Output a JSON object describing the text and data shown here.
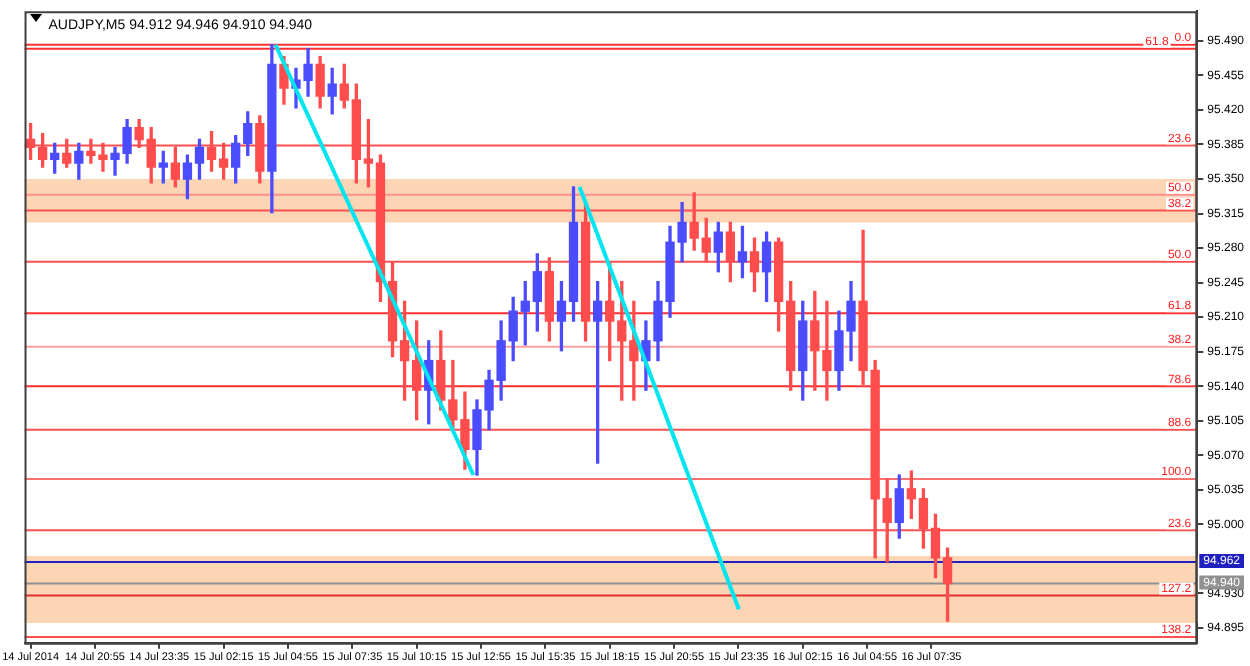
{
  "chart_data": {
    "type": "candlestick",
    "title": "AUDJPY,M5 94.912 94.946 94.910 94.940",
    "x": [
      "2014-07-14T18:15",
      "2014-07-14T18:45",
      "2014-07-14T19:15",
      "2014-07-14T19:45",
      "2014-07-14T20:15",
      "2014-07-14T20:45",
      "2014-07-14T21:15",
      "2014-07-14T21:45",
      "2014-07-14T22:15",
      "2014-07-14T22:45",
      "2014-07-14T23:15",
      "2014-07-14T23:45",
      "2014-07-15T00:15",
      "2014-07-15T00:45",
      "2014-07-15T01:15",
      "2014-07-15T01:45",
      "2014-07-15T02:15",
      "2014-07-15T02:45",
      "2014-07-15T03:15",
      "2014-07-15T03:45",
      "2014-07-15T04:15",
      "2014-07-15T04:45",
      "2014-07-15T05:15",
      "2014-07-15T05:45",
      "2014-07-15T06:15",
      "2014-07-15T06:45",
      "2014-07-15T07:15",
      "2014-07-15T07:45",
      "2014-07-15T08:15",
      "2014-07-15T08:45",
      "2014-07-15T09:15",
      "2014-07-15T09:45",
      "2014-07-15T10:15",
      "2014-07-15T10:45",
      "2014-07-15T11:15",
      "2014-07-15T11:45",
      "2014-07-15T12:15",
      "2014-07-15T12:45",
      "2014-07-15T13:15",
      "2014-07-15T13:45",
      "2014-07-15T14:15",
      "2014-07-15T14:45",
      "2014-07-15T15:15",
      "2014-07-15T15:45",
      "2014-07-15T16:15",
      "2014-07-15T16:45",
      "2014-07-15T17:15",
      "2014-07-15T17:45",
      "2014-07-15T18:15",
      "2014-07-15T18:45",
      "2014-07-15T19:15",
      "2014-07-15T19:45",
      "2014-07-15T20:15",
      "2014-07-15T20:45",
      "2014-07-15T21:15",
      "2014-07-15T21:45",
      "2014-07-15T22:15",
      "2014-07-15T22:45",
      "2014-07-15T23:15",
      "2014-07-15T23:45",
      "2014-07-16T00:15",
      "2014-07-16T00:45",
      "2014-07-16T01:15",
      "2014-07-16T01:45",
      "2014-07-16T02:15",
      "2014-07-16T02:45",
      "2014-07-16T03:15",
      "2014-07-16T03:45",
      "2014-07-16T04:15",
      "2014-07-16T04:45",
      "2014-07-16T05:15",
      "2014-07-16T05:45",
      "2014-07-16T06:15",
      "2014-07-16T06:45",
      "2014-07-16T07:15",
      "2014-07-16T07:45",
      "2014-07-16T08:15"
    ],
    "ohlc": [
      [
        95.39,
        95.406,
        95.37,
        95.382
      ],
      [
        95.382,
        95.396,
        95.362,
        95.37
      ],
      [
        95.37,
        95.386,
        95.356,
        95.376
      ],
      [
        95.376,
        95.39,
        95.362,
        95.366
      ],
      [
        95.366,
        95.386,
        95.35,
        95.378
      ],
      [
        95.378,
        95.39,
        95.366,
        95.374
      ],
      [
        95.374,
        95.386,
        95.358,
        95.37
      ],
      [
        95.37,
        95.382,
        95.354,
        95.376
      ],
      [
        95.376,
        95.41,
        95.366,
        95.402
      ],
      [
        95.402,
        95.41,
        95.382,
        95.39
      ],
      [
        95.39,
        95.402,
        95.346,
        95.362
      ],
      [
        95.362,
        95.378,
        95.346,
        95.366
      ],
      [
        95.366,
        95.382,
        95.342,
        95.35
      ],
      [
        95.35,
        95.374,
        95.33,
        95.366
      ],
      [
        95.366,
        95.39,
        95.35,
        95.382
      ],
      [
        95.382,
        95.398,
        95.358,
        95.37
      ],
      [
        95.37,
        95.386,
        95.35,
        95.362
      ],
      [
        95.362,
        95.394,
        95.346,
        95.386
      ],
      [
        95.386,
        95.418,
        95.374,
        95.406
      ],
      [
        95.406,
        95.414,
        95.346,
        95.358
      ],
      [
        95.358,
        95.486,
        95.316,
        95.466
      ],
      [
        95.466,
        95.474,
        95.426,
        95.442
      ],
      [
        95.442,
        95.462,
        95.422,
        95.45
      ],
      [
        95.45,
        95.482,
        95.434,
        95.466
      ],
      [
        95.466,
        95.474,
        95.422,
        95.434
      ],
      [
        95.434,
        95.462,
        95.416,
        95.446
      ],
      [
        95.446,
        95.466,
        95.422,
        95.43
      ],
      [
        95.43,
        95.446,
        95.346,
        95.37
      ],
      [
        95.37,
        95.41,
        95.342,
        95.366
      ],
      [
        95.366,
        95.374,
        95.226,
        95.246
      ],
      [
        95.246,
        95.266,
        95.17,
        95.186
      ],
      [
        95.186,
        95.226,
        95.126,
        95.166
      ],
      [
        95.166,
        95.206,
        95.106,
        95.136
      ],
      [
        95.136,
        95.186,
        95.102,
        95.166
      ],
      [
        95.166,
        95.196,
        95.116,
        95.126
      ],
      [
        95.126,
        95.166,
        95.096,
        95.106
      ],
      [
        95.106,
        95.134,
        95.056,
        95.076
      ],
      [
        95.076,
        95.126,
        95.05,
        95.116
      ],
      [
        95.116,
        95.156,
        95.096,
        95.146
      ],
      [
        95.146,
        95.206,
        95.126,
        95.186
      ],
      [
        95.186,
        95.23,
        95.166,
        95.216
      ],
      [
        95.216,
        95.246,
        95.182,
        95.226
      ],
      [
        95.226,
        95.274,
        95.196,
        95.256
      ],
      [
        95.256,
        95.27,
        95.186,
        95.206
      ],
      [
        95.206,
        95.246,
        95.176,
        95.226
      ],
      [
        95.226,
        95.342,
        95.206,
        95.306
      ],
      [
        95.306,
        95.326,
        95.186,
        95.206
      ],
      [
        95.206,
        95.246,
        95.062,
        95.226
      ],
      [
        95.226,
        95.266,
        95.166,
        95.206
      ],
      [
        95.206,
        95.246,
        95.126,
        95.186
      ],
      [
        95.186,
        95.226,
        95.126,
        95.166
      ],
      [
        95.166,
        95.206,
        95.136,
        95.186
      ],
      [
        95.186,
        95.246,
        95.166,
        95.226
      ],
      [
        95.226,
        95.302,
        95.21,
        95.286
      ],
      [
        95.286,
        95.326,
        95.266,
        95.306
      ],
      [
        95.306,
        95.336,
        95.278,
        95.29
      ],
      [
        95.29,
        95.31,
        95.266,
        95.276
      ],
      [
        95.276,
        95.306,
        95.256,
        95.296
      ],
      [
        95.296,
        95.306,
        95.246,
        95.266
      ],
      [
        95.266,
        95.302,
        95.25,
        95.276
      ],
      [
        95.276,
        95.29,
        95.236,
        95.256
      ],
      [
        95.256,
        95.296,
        95.226,
        95.286
      ],
      [
        95.286,
        95.29,
        95.196,
        95.226
      ],
      [
        95.226,
        95.246,
        95.136,
        95.156
      ],
      [
        95.156,
        95.226,
        95.126,
        95.206
      ],
      [
        95.206,
        95.236,
        95.136,
        95.176
      ],
      [
        95.176,
        95.226,
        95.126,
        95.156
      ],
      [
        95.156,
        95.216,
        95.136,
        95.196
      ],
      [
        95.196,
        95.246,
        95.166,
        95.226
      ],
      [
        95.226,
        95.298,
        95.142,
        95.156
      ],
      [
        95.156,
        95.166,
        94.966,
        95.026
      ],
      [
        95.026,
        95.046,
        94.962,
        95.002
      ],
      [
        95.002,
        95.05,
        94.986,
        95.036
      ],
      [
        95.036,
        95.054,
        95.006,
        95.026
      ],
      [
        95.026,
        95.036,
        94.976,
        94.996
      ],
      [
        94.996,
        95.01,
        94.946,
        94.966
      ],
      [
        94.966,
        94.976,
        94.902,
        94.94
      ]
    ],
    "colors": [
      "#ff4c4c",
      "#ff4c4c",
      "#4c4cff",
      "#ff4c4c",
      "#4c4cff",
      "#ff4c4c",
      "#ff4c4c",
      "#4c4cff",
      "#4c4cff",
      "#ff4c4c",
      "#ff4c4c",
      "#4c4cff",
      "#ff4c4c",
      "#4c4cff",
      "#4c4cff",
      "#ff4c4c",
      "#ff4c4c",
      "#4c4cff",
      "#4c4cff",
      "#ff4c4c",
      "#4c4cff",
      "#ff4c4c",
      "#4c4cff",
      "#4c4cff",
      "#ff4c4c",
      "#4c4cff",
      "#ff4c4c",
      "#ff4c4c",
      "#ff4c4c",
      "#ff4c4c",
      "#ff4c4c",
      "#ff4c4c",
      "#ff4c4c",
      "#4c4cff",
      "#ff4c4c",
      "#ff4c4c",
      "#ff4c4c",
      "#4c4cff",
      "#4c4cff",
      "#4c4cff",
      "#4c4cff",
      "#4c4cff",
      "#4c4cff",
      "#ff4c4c",
      "#4c4cff",
      "#4c4cff",
      "#ff4c4c",
      "#4c4cff",
      "#ff4c4c",
      "#ff4c4c",
      "#ff4c4c",
      "#4c4cff",
      "#4c4cff",
      "#4c4cff",
      "#4c4cff",
      "#ff4c4c",
      "#ff4c4c",
      "#4c4cff",
      "#ff4c4c",
      "#4c4cff",
      "#ff4c4c",
      "#4c4cff",
      "#ff4c4c",
      "#ff4c4c",
      "#4c4cff",
      "#ff4c4c",
      "#ff4c4c",
      "#4c4cff",
      "#4c4cff",
      "#ff4c4c",
      "#ff4c4c",
      "#ff4c4c",
      "#4c4cff",
      "#ff4c4c",
      "#ff4c4c",
      "#ff4c4c",
      "#ff4c4c"
    ],
    "series": [
      {
        "type": "line",
        "x": [
          "2014-07-15T04:24",
          "2014-07-15T12:36"
        ],
        "values": [
          95.486,
          95.05
        ],
        "color": "#00e5ee"
      },
      {
        "type": "line",
        "x": [
          "2014-07-15T17:00",
          "2014-07-15T23:36"
        ],
        "values": [
          95.342,
          94.914
        ],
        "color": "#00e5ee"
      }
    ],
    "xlim": [
      "2014-07-14T18:00",
      "2014-07-16T18:36"
    ],
    "xticks": [
      {
        "value": "2014-07-14T18:15",
        "label": "14 Jul 2014"
      },
      {
        "value": "2014-07-14T20:55",
        "label": "14 Jul 20:55"
      },
      {
        "value": "2014-07-14T23:35",
        "label": "14 Jul 23:35"
      },
      {
        "value": "2014-07-15T02:15",
        "label": "15 Jul 02:15"
      },
      {
        "value": "2014-07-15T04:55",
        "label": "15 Jul 04:55"
      },
      {
        "value": "2014-07-15T07:35",
        "label": "15 Jul 07:35"
      },
      {
        "value": "2014-07-15T10:15",
        "label": "15 Jul 10:15"
      },
      {
        "value": "2014-07-15T12:55",
        "label": "15 Jul 12:55"
      },
      {
        "value": "2014-07-15T15:35",
        "label": "15 Jul 15:35"
      },
      {
        "value": "2014-07-15T18:15",
        "label": "15 Jul 18:15"
      },
      {
        "value": "2014-07-15T20:55",
        "label": "15 Jul 20:55"
      },
      {
        "value": "2014-07-15T23:35",
        "label": "15 Jul 23:35"
      },
      {
        "value": "2014-07-16T02:15",
        "label": "16 Jul 02:15"
      },
      {
        "value": "2014-07-16T04:55",
        "label": "16 Jul 04:55"
      },
      {
        "value": "2014-07-16T07:35",
        "label": "16 Jul 07:35"
      }
    ],
    "ylim": [
      94.88,
      95.52
    ],
    "yticks": [
      {
        "value": 95.49,
        "label": "95.490"
      },
      95.455,
      {
        "value": 95.42,
        "label": "95.420"
      },
      95.385,
      {
        "value": 95.35,
        "label": "95.350"
      },
      95.315,
      {
        "value": 95.28,
        "label": "95.280"
      },
      95.245,
      {
        "value": 95.21,
        "label": "95.210"
      },
      95.175,
      {
        "value": 95.14,
        "label": "95.140"
      },
      95.105,
      {
        "value": 95.07,
        "label": "95.070"
      },
      95.035,
      {
        "value": 95.0,
        "label": "95.000"
      },
      {
        "value": 94.93,
        "label": "94.930"
      },
      94.895
    ],
    "ref_lines": [
      {
        "axis": "y",
        "value": 95.486,
        "color": "#ff3030"
      },
      {
        "axis": "y",
        "value": 95.482,
        "color": "#ff3030"
      },
      {
        "axis": "y",
        "value": 95.384,
        "color": "#ff5050"
      },
      {
        "axis": "y",
        "value": 95.334,
        "color": "#ff9090"
      },
      {
        "axis": "y",
        "value": 95.318,
        "color": "#ff5050"
      },
      {
        "axis": "y",
        "value": 95.266,
        "color": "#ff5050"
      },
      {
        "axis": "y",
        "value": 95.214,
        "color": "#ff3030"
      },
      {
        "axis": "y",
        "value": 95.18,
        "color": "#ff9f9f"
      },
      {
        "axis": "y",
        "value": 95.14,
        "color": "#ff3030"
      },
      {
        "axis": "y",
        "value": 95.096,
        "color": "#ff5050"
      },
      {
        "axis": "y",
        "value": 95.046,
        "color": "#ff7070"
      },
      {
        "axis": "y",
        "value": 94.994,
        "color": "#ff5050"
      },
      {
        "axis": "y",
        "value": 94.928,
        "color": "#e03030"
      },
      {
        "axis": "y",
        "value": 94.886,
        "color": "#ff5050"
      },
      {
        "axis": "y",
        "value": 94.962,
        "label": "94.962",
        "color": "#2020c0"
      },
      {
        "axis": "y",
        "value": 94.94,
        "label": "94.940",
        "color": "#909090"
      }
    ],
    "bands": [
      {
        "axis": "y",
        "from": 95.306,
        "to": 95.35,
        "color": "#fcd5b5"
      },
      {
        "axis": "y",
        "from": 94.9,
        "to": 94.968,
        "color": "#fcd5b5"
      }
    ],
    "annotations": [
      {
        "text": "0.0",
        "y": 95.486
      },
      {
        "text": "61.8",
        "y": 95.482
      },
      {
        "text": "23.6",
        "y": 95.384
      },
      {
        "text": "50.0",
        "y": 95.334
      },
      {
        "text": "38.2",
        "y": 95.318
      },
      {
        "text": "50.0",
        "y": 95.266
      },
      {
        "text": "61.8",
        "y": 95.214
      },
      {
        "text": "38.2",
        "y": 95.18
      },
      {
        "text": "78.6",
        "y": 95.14
      },
      {
        "text": "88.6",
        "y": 95.096
      },
      {
        "text": "100.0",
        "y": 95.046
      },
      {
        "text": "23.6",
        "y": 94.994
      },
      {
        "text": "127.2",
        "y": 94.928
      },
      {
        "text": "138.2",
        "y": 94.886
      }
    ]
  }
}
